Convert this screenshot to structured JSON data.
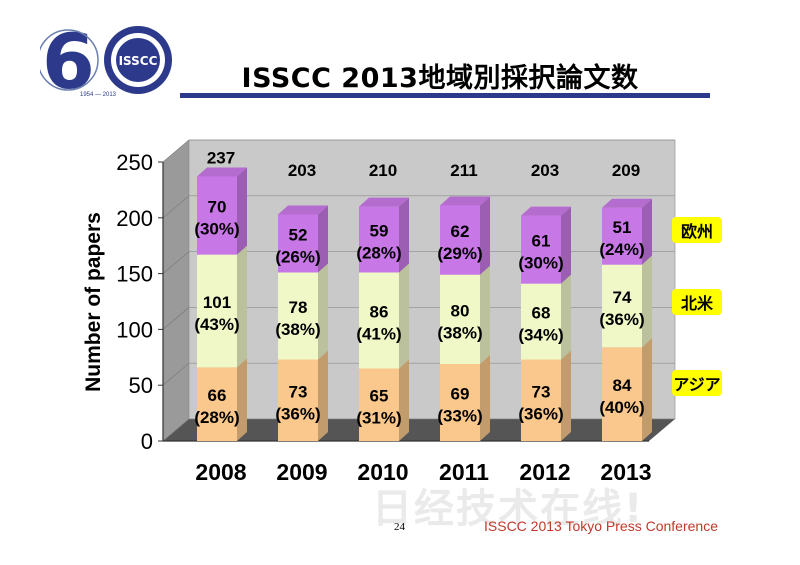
{
  "header": {
    "logo_number": "6",
    "logo_badge": "ISSCC",
    "logo_years": "1954 — 2013",
    "title": "ISSCC 2013地域別採択論文数"
  },
  "footer": {
    "page_number": "24",
    "conference": "ISSCC 2013 Tokyo Press Conference",
    "watermark": "日经技术在线!"
  },
  "colors": {
    "asia": "#fac88c",
    "north_america": "#f0f8c8",
    "europe": "#c878e6",
    "label_bg": "#ffff00",
    "title_rule": "#2d3a8c",
    "footer_text": "#c0392b"
  },
  "chart_data": {
    "type": "bar",
    "stacked": true,
    "three_d": true,
    "categories": [
      "2008",
      "2009",
      "2010",
      "2011",
      "2012",
      "2013"
    ],
    "ylabel": "Number of papers",
    "ylim": [
      0,
      250
    ],
    "yticks": [
      "0",
      "50",
      "100",
      "150",
      "200",
      "250"
    ],
    "grid": true,
    "series": [
      {
        "name": "アジア",
        "values": [
          66,
          73,
          65,
          69,
          73,
          84
        ],
        "percent_labels": [
          "(28%)",
          "(36%)",
          "(31%)",
          "(33%)",
          "(36%)",
          "(40%)"
        ]
      },
      {
        "name": "北米",
        "values": [
          101,
          78,
          86,
          80,
          68,
          74
        ],
        "percent_labels": [
          "(43%)",
          "(38%)",
          "(41%)",
          "(38%)",
          "(34%)",
          "(36%)"
        ]
      },
      {
        "name": "欧州",
        "values": [
          70,
          52,
          59,
          62,
          61,
          51
        ],
        "percent_labels": [
          "(30%)",
          "(26%)",
          "(28%)",
          "(29%)",
          "(30%)",
          "(24%)"
        ]
      }
    ],
    "totals": [
      "237",
      "203",
      "210",
      "211",
      "203",
      "209"
    ],
    "legend_placement": "right, labels beside the series"
  }
}
